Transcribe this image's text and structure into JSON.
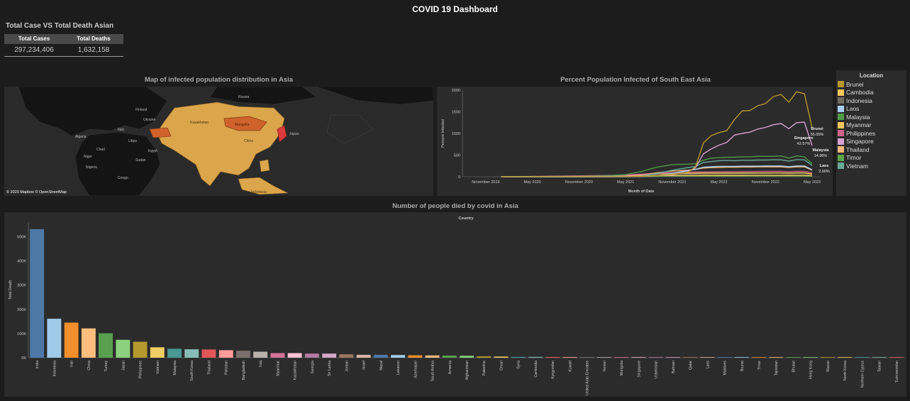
{
  "dashboard": {
    "title": "COVID 19 Dashboard"
  },
  "kpi": {
    "title": "Total Case VS Total Death Asian",
    "headers": [
      "Total Cases",
      "Total Deaths"
    ],
    "values": [
      "297,234,406",
      "1,632,158"
    ]
  },
  "map": {
    "title": "Map of infected population distribution in Asia",
    "attribution": "© 2023 Mapbox © OpenStreetMap",
    "place_labels": [
      "Italy",
      "Egypt",
      "Niger",
      "Sudan",
      "Ukraine",
      "Finland",
      "Kazakhstan",
      "Russia",
      "Mongolia",
      "China",
      "Japan",
      "Indonesia",
      "Chad",
      "Libya",
      "Algeria",
      "Nigeria",
      "Congo"
    ]
  },
  "legend": {
    "title": "Location",
    "items": [
      {
        "label": "Brunei",
        "color": "#b8962e"
      },
      {
        "label": "Cambodia",
        "color": "#f3c85b"
      },
      {
        "label": "Indonesia",
        "color": "#6e6a62"
      },
      {
        "label": "Laos",
        "color": "#a8d0ee"
      },
      {
        "label": "Malaysia",
        "color": "#4f9a45"
      },
      {
        "label": "Myanmar",
        "color": "#f1c45a"
      },
      {
        "label": "Philippines",
        "color": "#d0618a"
      },
      {
        "label": "Singapore",
        "color": "#d7a2cf"
      },
      {
        "label": "Thailand",
        "color": "#f8b87a"
      },
      {
        "label": "Timor",
        "color": "#5ca24a"
      },
      {
        "label": "Vietnam",
        "color": "#6aa89b"
      }
    ]
  },
  "chart_data": [
    {
      "type": "line",
      "title": "Percent Population Infected of South East Asia",
      "xlabel": "Month of Date",
      "ylabel": "Percent Infected",
      "ylim": [
        0,
        2000
      ],
      "yticks": [
        "0",
        "500",
        "1000",
        "1500",
        "2000"
      ],
      "xticks": [
        "November 2019",
        "May 2020",
        "November 2020",
        "May 2021",
        "November 2021",
        "May 2022",
        "November 2022",
        "May 2023"
      ],
      "x": [
        "2020-01",
        "2020-03",
        "2020-05",
        "2020-07",
        "2020-09",
        "2020-11",
        "2021-01",
        "2021-03",
        "2021-05",
        "2021-07",
        "2021-09",
        "2021-11",
        "2022-01",
        "2022-02",
        "2022-03",
        "2022-04",
        "2022-05",
        "2022-06",
        "2022-07",
        "2022-08",
        "2022-09",
        "2022-10",
        "2022-11",
        "2022-12",
        "2023-01",
        "2023-02",
        "2023-03",
        "2023-04",
        "2023-05"
      ],
      "series": [
        {
          "name": "Brunei",
          "color": "#b8962e",
          "values": [
            0,
            1,
            2,
            3,
            3,
            3,
            3,
            3,
            4,
            8,
            25,
            60,
            100,
            230,
            780,
            950,
            1020,
            1060,
            1320,
            1520,
            1530,
            1640,
            1690,
            1850,
            1900,
            1720,
            1960,
            1920,
            1130
          ]
        },
        {
          "name": "Singapore",
          "color": "#d7a2cf",
          "values": [
            0,
            1,
            6,
            9,
            10,
            10,
            10,
            11,
            12,
            15,
            25,
            50,
            110,
            210,
            530,
            640,
            730,
            790,
            960,
            1000,
            1030,
            1100,
            1140,
            1200,
            1230,
            1110,
            1250,
            1260,
            720
          ]
        },
        {
          "name": "Malaysia",
          "color": "#4f9a45",
          "values": [
            0,
            1,
            2,
            3,
            6,
            10,
            18,
            28,
            48,
            120,
            220,
            280,
            290,
            300,
            380,
            430,
            440,
            450,
            450,
            460,
            460,
            470,
            470,
            470,
            480,
            430,
            480,
            460,
            300
          ]
        },
        {
          "name": "Vietnam",
          "color": "#6aa89b",
          "values": [
            0,
            0,
            0,
            0,
            0,
            0,
            0,
            0,
            1,
            20,
            70,
            150,
            210,
            240,
            330,
            350,
            370,
            375,
            370,
            380,
            380,
            385,
            385,
            390,
            390,
            360,
            395,
            390,
            260
          ]
        },
        {
          "name": "Laos",
          "color": "#a8d0ee",
          "values": [
            0,
            0,
            0,
            0,
            0,
            0,
            0,
            0,
            1,
            3,
            20,
            80,
            140,
            170,
            220,
            230,
            240,
            240,
            240,
            245,
            245,
            245,
            250,
            250,
            250,
            230,
            250,
            250,
            160
          ]
        },
        {
          "name": "Thailand",
          "color": "#f8b87a",
          "values": [
            0,
            0,
            0,
            0,
            0,
            0,
            1,
            2,
            5,
            30,
            90,
            130,
            150,
            170,
            200,
            210,
            215,
            220,
            220,
            225,
            225,
            230,
            230,
            230,
            230,
            215,
            230,
            230,
            150
          ]
        },
        {
          "name": "Philippines",
          "color": "#d0618a",
          "values": [
            0,
            1,
            5,
            10,
            15,
            20,
            25,
            30,
            40,
            60,
            80,
            90,
            100,
            110,
            110,
            112,
            113,
            114,
            116,
            118,
            120,
            122,
            123,
            124,
            125,
            118,
            125,
            125,
            90
          ]
        },
        {
          "name": "Cambodia",
          "color": "#f3c85b",
          "values": [
            0,
            0,
            0,
            0,
            0,
            0,
            0,
            5,
            20,
            40,
            70,
            80,
            82,
            84,
            85,
            86,
            86,
            86,
            86,
            87,
            87,
            87,
            87,
            88,
            88,
            84,
            88,
            88,
            60
          ]
        },
        {
          "name": "Indonesia",
          "color": "#6e6a62",
          "values": [
            0,
            0,
            1,
            2,
            5,
            8,
            12,
            15,
            20,
            40,
            55,
            58,
            60,
            62,
            70,
            72,
            73,
            74,
            75,
            76,
            77,
            78,
            79,
            80,
            80,
            76,
            80,
            80,
            55
          ]
        },
        {
          "name": "Myanmar",
          "color": "#f1c45a",
          "values": [
            0,
            0,
            0,
            0,
            2,
            4,
            6,
            7,
            8,
            20,
            28,
            30,
            30,
            30,
            32,
            33,
            33,
            33,
            33,
            33,
            34,
            34,
            34,
            34,
            34,
            33,
            34,
            34,
            25
          ]
        },
        {
          "name": "Timor",
          "color": "#5ca24a",
          "values": [
            0,
            0,
            0,
            0,
            0,
            0,
            0,
            1,
            2,
            5,
            10,
            15,
            16,
            17,
            17,
            17,
            17,
            17,
            17,
            17,
            18,
            18,
            18,
            18,
            18,
            17,
            18,
            18,
            12
          ]
        }
      ],
      "annotations": [
        {
          "series": "Brunei",
          "label": "Brunei",
          "value": "55.05%"
        },
        {
          "series": "Singapore",
          "label": "Singapore",
          "value": "42.57%"
        },
        {
          "series": "Malaysia",
          "label": "Malaysia",
          "value": "14.96%"
        },
        {
          "series": "Laos",
          "label": "Laos",
          "value": "2.90%"
        }
      ]
    },
    {
      "type": "bar",
      "title": "Number of people died by covid in Asia",
      "xlabel": "Country",
      "ylabel": "Total Death",
      "ylim": [
        0,
        560000
      ],
      "yticks": [
        {
          "v": 0,
          "label": "0K"
        },
        {
          "v": 100000,
          "label": "100K"
        },
        {
          "v": 200000,
          "label": "200K"
        },
        {
          "v": 300000,
          "label": "300K"
        },
        {
          "v": 400000,
          "label": "400K"
        },
        {
          "v": 500000,
          "label": "500K"
        }
      ],
      "categories": [
        "India",
        "Indonesia",
        "Iran",
        "China",
        "Turkey",
        "Japan",
        "Philippines",
        "Vietnam",
        "Malaysia",
        "South Korea",
        "Thailand",
        "Pakistan",
        "Bangladesh",
        "Iraq",
        "Myanmar",
        "Kazakhstan",
        "Georgia",
        "Sri Lanka",
        "Jordan",
        "Israel",
        "Nepal",
        "Lebanon",
        "Azerbaijan",
        "Saudi Arabia",
        "Armenia",
        "Afghanistan",
        "Palestine",
        "Oman",
        "Syria",
        "Cambodia",
        "Kyrgyzstan",
        "Kuwait",
        "United Arab Emirates",
        "Yemen",
        "Mongolia",
        "Singapore",
        "Uzbekistan",
        "Bahrain",
        "Qatar",
        "Laos",
        "Maldives",
        "Brunei",
        "Timor",
        "Tajikistan",
        "Bhutan",
        "Hong Kong",
        "Macao",
        "North Korea",
        "Northern Cyprus",
        "Taiwan",
        "Turkmenistan"
      ],
      "values": [
        531000,
        161000,
        145000,
        121000,
        101000,
        74000,
        66000,
        43000,
        37000,
        35000,
        34000,
        31000,
        29000,
        25000,
        19000,
        19000,
        17000,
        17000,
        14000,
        12000,
        12000,
        11000,
        10000,
        9500,
        8700,
        7900,
        5700,
        4600,
        3200,
        3100,
        2900,
        2600,
        2400,
        2200,
        2100,
        1700,
        1600,
        1500,
        700,
        700,
        300,
        200,
        150,
        130,
        40,
        30,
        20,
        10,
        5,
        5,
        5
      ],
      "colors": [
        "#4e79a7",
        "#a0cbe8",
        "#f28e2b",
        "#ffbe7d",
        "#59a14f",
        "#8cd17d",
        "#b6992d",
        "#f1ce63",
        "#499894",
        "#86bcb6",
        "#e15759",
        "#ff9d9a",
        "#79706e",
        "#bab0ac",
        "#d37295",
        "#fabfd2",
        "#b07aa1",
        "#d4a6c8",
        "#9d7660",
        "#d7b5a6"
      ]
    }
  ]
}
